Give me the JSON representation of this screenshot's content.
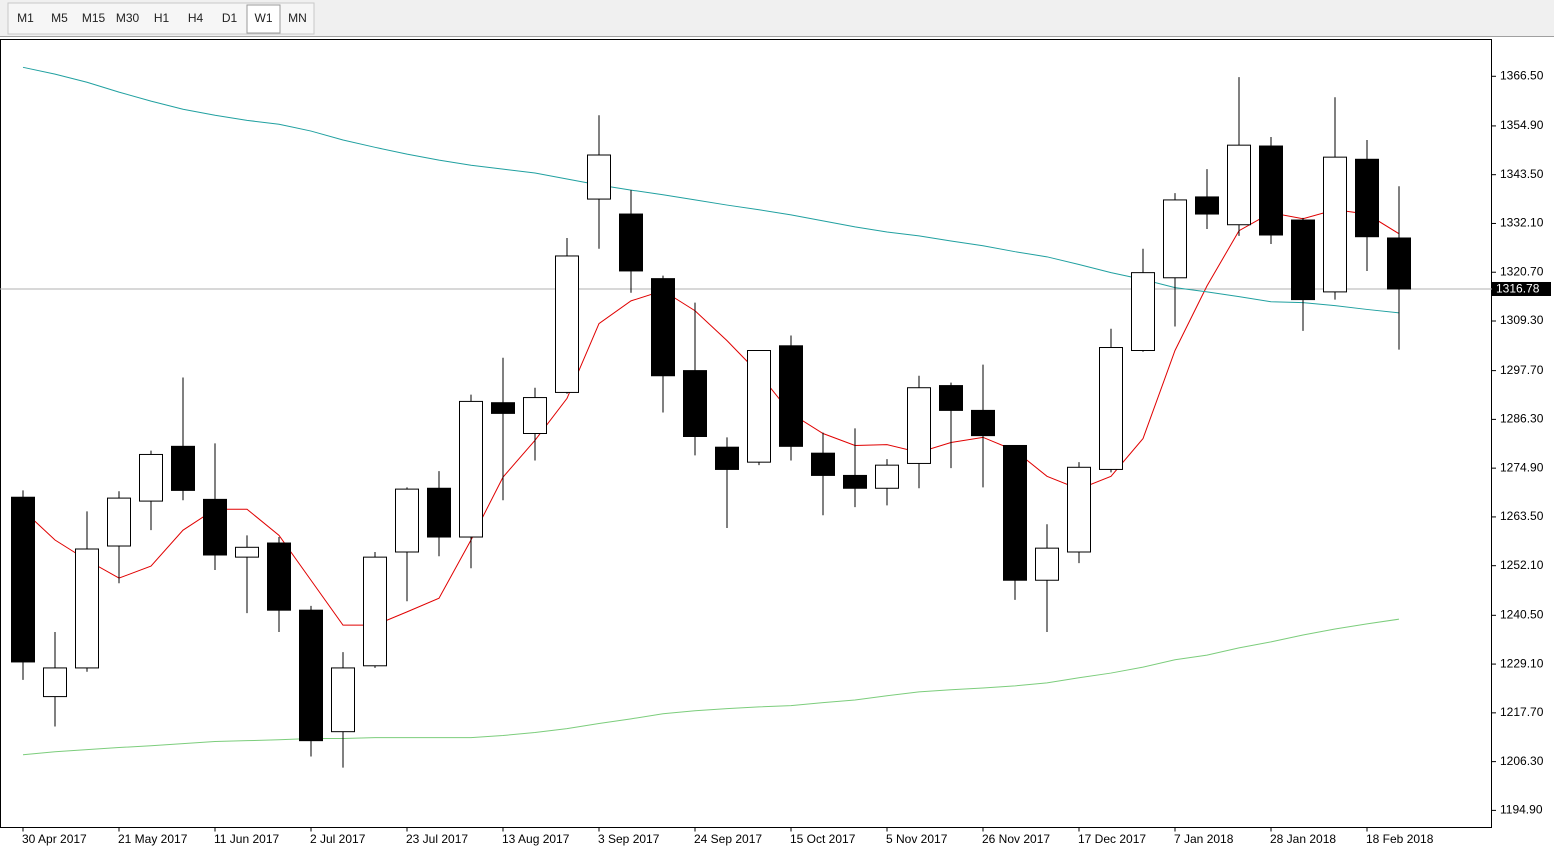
{
  "toolbar": {
    "buttons": [
      "M1",
      "M5",
      "M15",
      "M30",
      "H1",
      "H4",
      "D1",
      "W1",
      "MN"
    ],
    "active": 7
  },
  "chart_data": {
    "type": "candlestick",
    "categories": [
      "30 Apr 2017",
      null,
      null,
      "21 May 2017",
      null,
      null,
      "11 Jun 2017",
      null,
      null,
      "2 Jul 2017",
      null,
      null,
      "23 Jul 2017",
      null,
      null,
      "13 Aug 2017",
      null,
      null,
      "3 Sep 2017",
      null,
      null,
      "24 Sep 2017",
      null,
      null,
      "15 Oct 2017",
      null,
      null,
      "5 Nov 2017",
      null,
      null,
      "26 Nov 2017",
      null,
      null,
      "17 Dec 2017",
      null,
      null,
      "7 Jan 2018",
      null,
      null,
      "28 Jan 2018",
      null,
      null,
      "18 Feb 2018",
      null
    ],
    "open": [
      1268.1,
      1221.5,
      1228.2,
      1256.7,
      1267.2,
      1280.0,
      1267.6,
      1254.1,
      1257.4,
      1241.7,
      1213.3,
      1228.7,
      1255.3,
      1270.2,
      1258.8,
      1290.2,
      1283.0,
      1292.6,
      1337.8,
      1334.3,
      1319.2,
      1297.7,
      1279.8,
      1276.3,
      1303.5,
      1278.4,
      1273.2,
      1270.2,
      1276.0,
      1294.2,
      1288.4,
      1280.2,
      1248.7,
      1255.3,
      1274.6,
      1302.4,
      1319.4,
      1338.3,
      1331.8,
      1350.2,
      1332.9,
      1316.1,
      1347.1,
      1328.7
    ],
    "high": [
      1269.7,
      1236.6,
      1264.8,
      1269.5,
      1279.0,
      1296.1,
      1280.7,
      1259.2,
      1258.8,
      1242.7,
      1231.9,
      1255.3,
      1270.4,
      1274.2,
      1292.1,
      1300.7,
      1293.7,
      1328.7,
      1357.4,
      1339.9,
      1319.9,
      1313.6,
      1282.1,
      1302.4,
      1305.9,
      1283.2,
      1284.2,
      1277.0,
      1296.5,
      1294.9,
      1299.1,
      1280.2,
      1261.8,
      1276.3,
      1307.5,
      1326.2,
      1339.2,
      1344.8,
      1366.3,
      1352.3,
      1333.4,
      1361.6,
      1351.6,
      1340.8
    ],
    "low": [
      1225.4,
      1214.5,
      1227.3,
      1248.0,
      1260.4,
      1267.4,
      1251.1,
      1241.0,
      1236.6,
      1207.5,
      1204.9,
      1228.2,
      1243.8,
      1254.3,
      1251.5,
      1267.4,
      1276.7,
      1292.3,
      1326.2,
      1315.9,
      1287.9,
      1277.9,
      1260.9,
      1275.6,
      1276.7,
      1263.9,
      1265.8,
      1266.2,
      1270.2,
      1274.9,
      1270.4,
      1244.1,
      1236.6,
      1252.7,
      1273.9,
      1302.1,
      1308.0,
      1330.8,
      1329.2,
      1327.3,
      1307.0,
      1314.3,
      1321.0,
      1302.6
    ],
    "close": [
      1229.6,
      1228.2,
      1256.0,
      1267.9,
      1278.1,
      1269.7,
      1254.6,
      1256.4,
      1241.7,
      1211.2,
      1228.2,
      1254.1,
      1270.0,
      1258.8,
      1290.5,
      1287.7,
      1291.4,
      1324.5,
      1348.1,
      1321.0,
      1296.5,
      1282.3,
      1274.6,
      1302.4,
      1280.0,
      1273.2,
      1270.2,
      1275.6,
      1293.7,
      1288.4,
      1282.5,
      1248.7,
      1256.2,
      1275.1,
      1303.1,
      1320.6,
      1337.6,
      1334.3,
      1350.4,
      1329.4,
      1314.3,
      1347.6,
      1329.0,
      1316.78
    ],
    "lines": [
      {
        "color": "#e00000",
        "values": [
          1265.1,
          1258.1,
          1253.4,
          1249.2,
          1252.0,
          1260.4,
          1265.3,
          1265.3,
          1259.2,
          1248.7,
          1238.2,
          1238.2,
          1241.3,
          1244.5,
          1258.1,
          1272.8,
          1281.4,
          1291.2,
          1308.7,
          1314.0,
          1316.4,
          1311.7,
          1304.7,
          1297.0,
          1287.7,
          1283.0,
          1280.2,
          1280.4,
          1278.6,
          1280.9,
          1282.1,
          1279.0,
          1273.0,
          1270.0,
          1273.0,
          1281.8,
          1302.4,
          1317.5,
          1330.4,
          1334.6,
          1333.2,
          1335.3,
          1334.3,
          1329.7
        ]
      },
      {
        "color": "#20a0a0",
        "values": [
          1368.6,
          1367.0,
          1365.1,
          1362.8,
          1360.7,
          1358.8,
          1357.4,
          1356.2,
          1355.3,
          1353.7,
          1351.6,
          1349.9,
          1348.3,
          1346.9,
          1345.7,
          1344.8,
          1343.9,
          1342.5,
          1341.1,
          1339.9,
          1338.8,
          1337.6,
          1336.4,
          1335.3,
          1334.1,
          1332.7,
          1331.3,
          1330.1,
          1329.2,
          1328.0,
          1326.9,
          1325.5,
          1324.3,
          1322.5,
          1320.6,
          1319.0,
          1317.1,
          1316.1,
          1315.0,
          1313.8,
          1313.6,
          1312.9,
          1312.0,
          1311.2
        ]
      },
      {
        "color": "#7ccd7c",
        "values": [
          1207.9,
          1208.6,
          1209.1,
          1209.6,
          1210.0,
          1210.5,
          1211.0,
          1211.2,
          1211.4,
          1211.7,
          1211.7,
          1211.9,
          1211.9,
          1211.9,
          1211.9,
          1212.4,
          1213.1,
          1214.0,
          1215.2,
          1216.3,
          1217.5,
          1218.2,
          1218.7,
          1219.1,
          1219.4,
          1220.1,
          1220.7,
          1221.7,
          1222.6,
          1223.1,
          1223.5,
          1224.0,
          1224.7,
          1225.9,
          1227.0,
          1228.4,
          1230.1,
          1231.2,
          1232.9,
          1234.3,
          1235.9,
          1237.3,
          1238.5,
          1239.6
        ]
      }
    ],
    "current_price": 1316.78,
    "ylim": [
      1190.9,
      1375.1
    ],
    "yticks": [
      {
        "value": 1366.5,
        "label": "1366.50"
      },
      {
        "value": 1354.9,
        "label": "1354.90"
      },
      {
        "value": 1343.5,
        "label": "1343.50"
      },
      {
        "value": 1332.1,
        "label": "1332.10"
      },
      {
        "value": 1320.7,
        "label": "1320.70"
      },
      {
        "value": 1309.3,
        "label": "1309.30"
      },
      {
        "value": 1297.7,
        "label": "1297.70"
      },
      {
        "value": 1286.3,
        "label": "1286.30"
      },
      {
        "value": 1274.9,
        "label": "1274.90"
      },
      {
        "value": 1263.5,
        "label": "1263.50"
      },
      {
        "value": 1252.1,
        "label": "1252.10"
      },
      {
        "value": 1240.5,
        "label": "1240.50"
      },
      {
        "value": 1229.1,
        "label": "1229.10"
      },
      {
        "value": 1217.7,
        "label": "1217.70"
      },
      {
        "value": 1206.3,
        "label": "1206.30"
      },
      {
        "value": 1194.9,
        "label": "1194.90"
      }
    ]
  }
}
